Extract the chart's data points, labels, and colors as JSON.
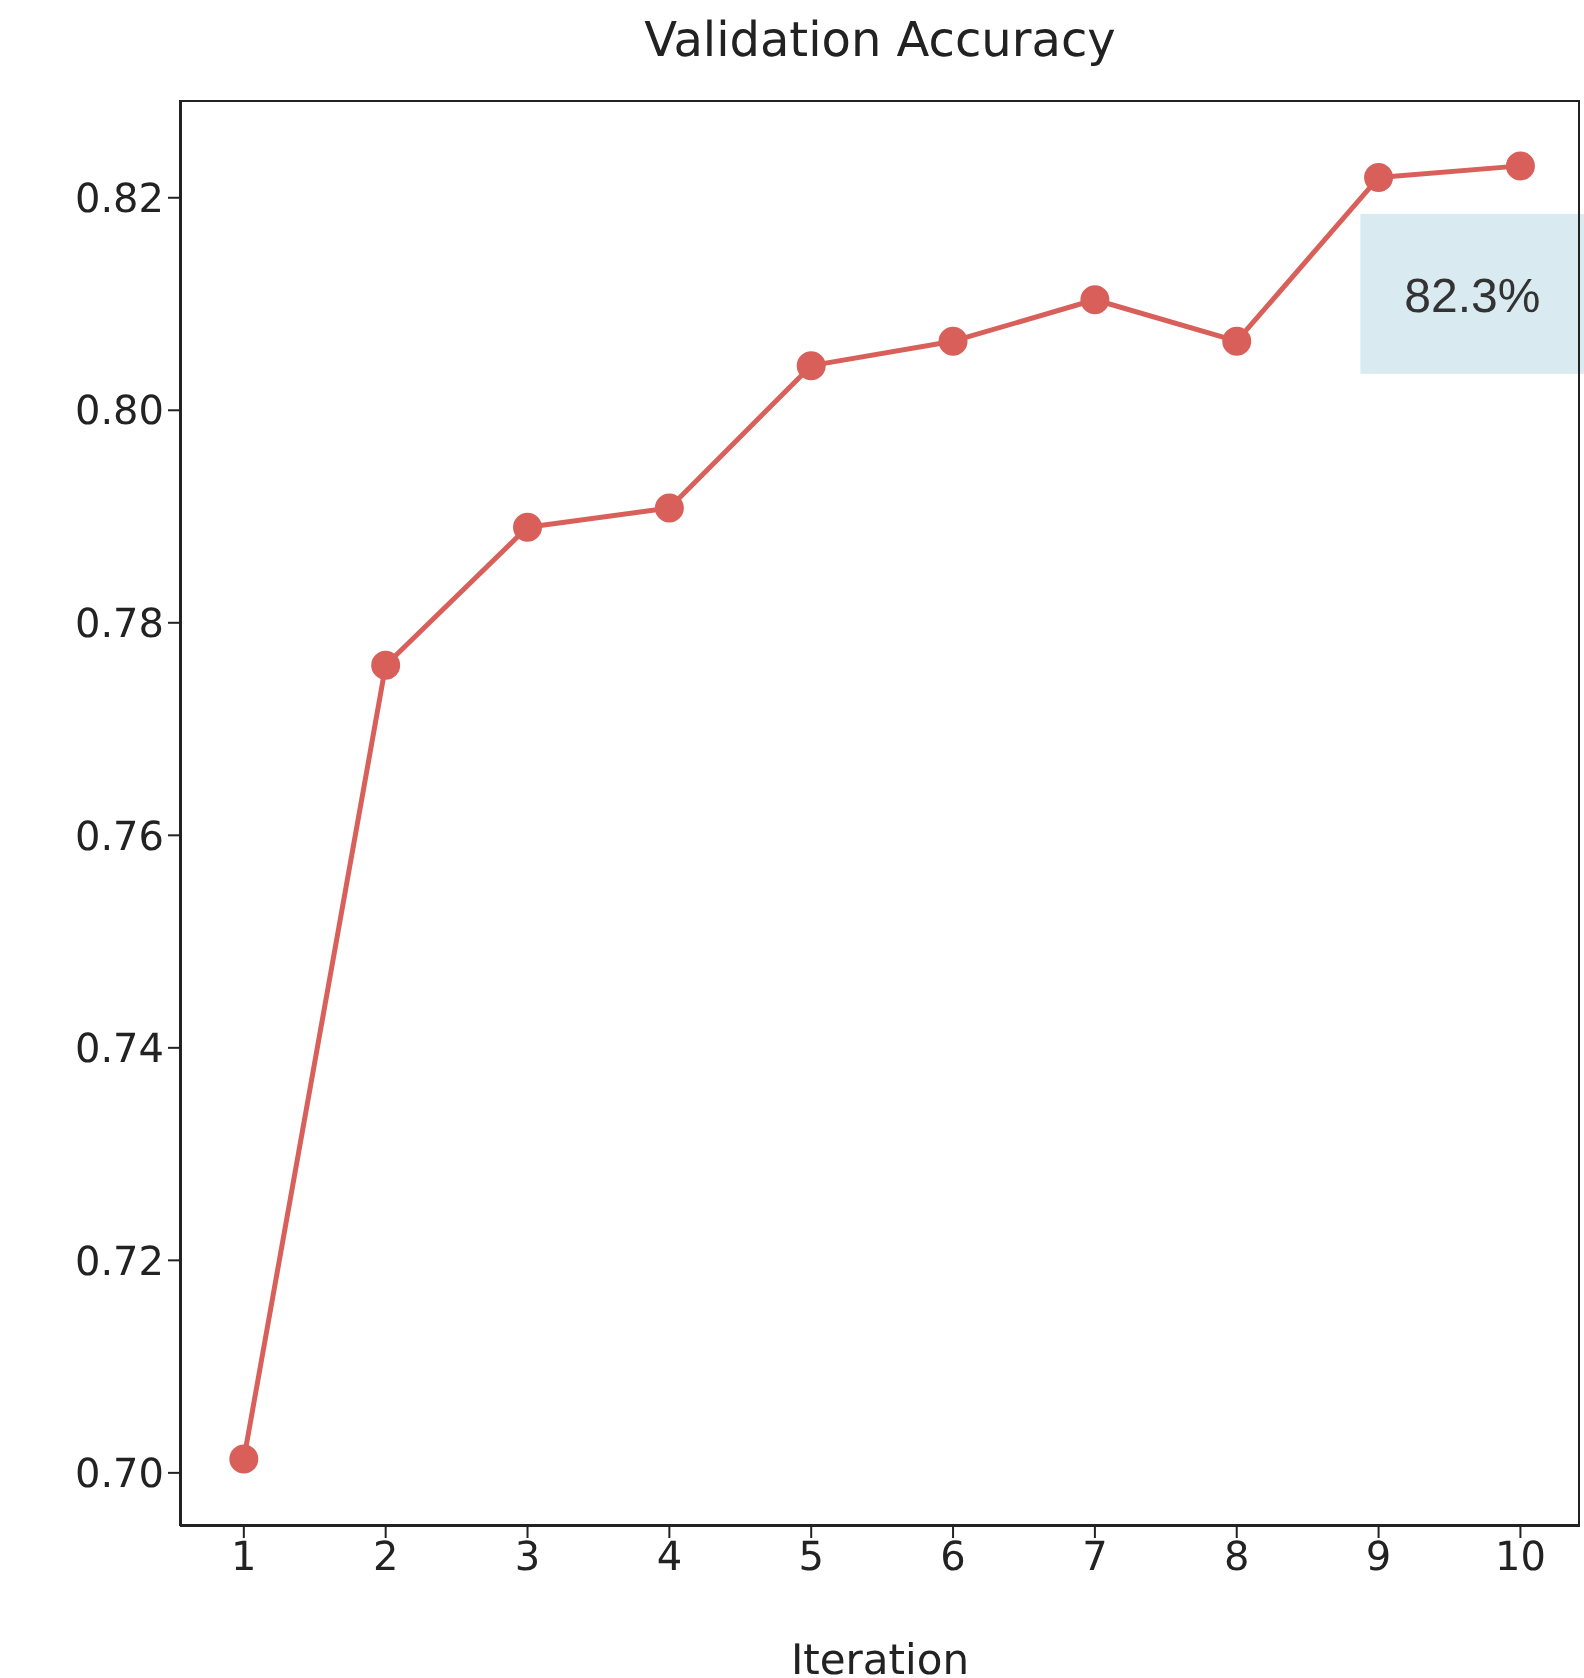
{
  "chart_data": {
    "type": "line",
    "title": "Validation Accuracy",
    "xlabel": "Iteration",
    "x": [
      1,
      2,
      3,
      4,
      5,
      6,
      7,
      8,
      9,
      10
    ],
    "series": [
      {
        "color": "#d9605a",
        "values": [
          0.7013,
          0.776,
          0.789,
          0.7908,
          0.8042,
          0.8065,
          0.8104,
          0.8065,
          0.8219,
          0.823
        ]
      }
    ],
    "xlim": [
      0.55,
      10.42
    ],
    "xticks": [
      1,
      2,
      3,
      4,
      5,
      6,
      7,
      8,
      9,
      10
    ],
    "ylim": [
      0.695,
      0.8292
    ],
    "yticks": [
      {
        "value": 0.7,
        "label": "0.70"
      },
      0.72,
      0.74,
      0.76,
      0.78,
      {
        "value": 0.8,
        "label": "0.80"
      },
      0.82
    ],
    "annotations": [
      {
        "text": "82.3%",
        "x": 10,
        "y": 0.823
      }
    ],
    "marker": "circle",
    "line_style": "solid",
    "grid": false
  }
}
